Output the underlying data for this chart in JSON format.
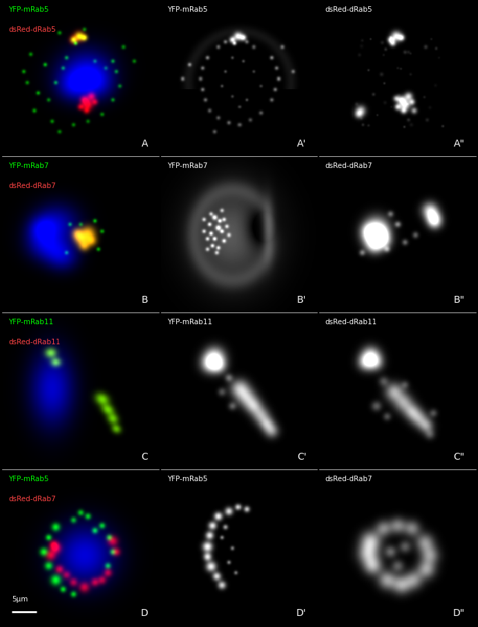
{
  "figure_width": 6.92,
  "figure_height": 9.07,
  "dpi": 100,
  "background_color": "#000000",
  "rows": 4,
  "cols": 3,
  "panel_labels": [
    [
      "A",
      "A'",
      "A\""
    ],
    [
      "B",
      "B'",
      "B\""
    ],
    [
      "C",
      "C'",
      "C\""
    ],
    [
      "D",
      "D'",
      "D\""
    ]
  ],
  "overlay_labels": [
    [
      [
        "YFP-mRab5",
        "dsRed-dRab5"
      ],
      [
        "YFP-mRab5"
      ],
      [
        "dsRed-dRab5"
      ]
    ],
    [
      [
        "YFP-mRab7",
        "dsRed-dRab7"
      ],
      [
        "YFP-mRab7"
      ],
      [
        "dsRed-dRab7"
      ]
    ],
    [
      [
        "YFP-mRab11",
        "dsRed-dRab11"
      ],
      [
        "YFP-mRab11"
      ],
      [
        "dsRed-dRab11"
      ]
    ],
    [
      [
        "YFP-mRab5",
        "dsRed-dRab7"
      ],
      [
        "YFP-mRab5"
      ],
      [
        "dsRed-dRab7"
      ]
    ]
  ],
  "overlay_colors": [
    [
      [
        "#00ff00",
        "#ff4444"
      ],
      [
        "#ffffff"
      ],
      [
        "#ffffff"
      ]
    ],
    [
      [
        "#00ff00",
        "#ff4444"
      ],
      [
        "#ffffff"
      ],
      [
        "#ffffff"
      ]
    ],
    [
      [
        "#00ff00",
        "#ff4444"
      ],
      [
        "#ffffff"
      ],
      [
        "#ffffff"
      ]
    ],
    [
      [
        "#00ff00",
        "#ff4444"
      ],
      [
        "#ffffff"
      ],
      [
        "#ffffff"
      ]
    ]
  ],
  "scale_bar_text": "5μm",
  "divider_color": "#ffffff",
  "divider_lw": 0.5
}
